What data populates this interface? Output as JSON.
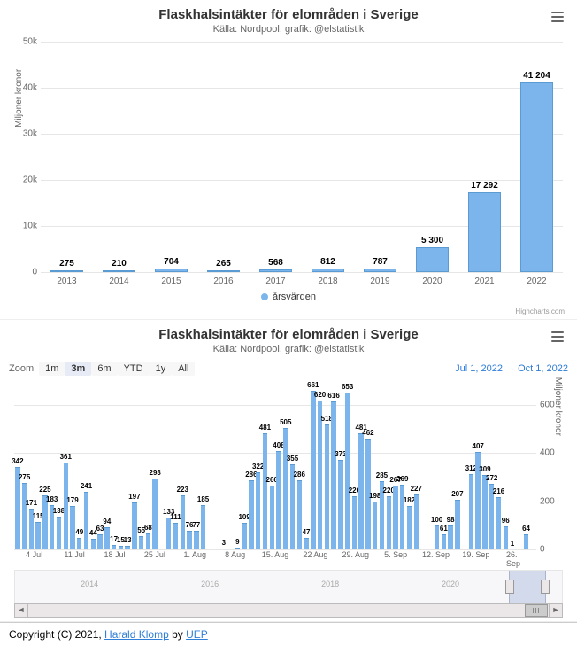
{
  "chart1": {
    "title": "Flaskhalsintäkter för elområden i Sverige",
    "subtitle": "Källa: Nordpool, grafik: @elstatistik",
    "ylabel": "Miljoner kronor",
    "ymax": 50000,
    "yticks": [
      0,
      10000,
      20000,
      30000,
      40000,
      50000
    ],
    "ytick_labels": [
      "0",
      "10k",
      "20k",
      "30k",
      "40k",
      "50k"
    ],
    "categories": [
      "2013",
      "2014",
      "2015",
      "2016",
      "2017",
      "2018",
      "2019",
      "2020",
      "2021",
      "2022"
    ],
    "values": [
      275,
      210,
      704,
      265,
      568,
      812,
      787,
      5300,
      17292,
      41204
    ],
    "labels": [
      "275",
      "210",
      "704",
      "265",
      "568",
      "812",
      "787",
      "5 300",
      "17 292",
      "41 204"
    ],
    "bar_color": "#7cb5ec",
    "legend": "årsvärden",
    "credits": "Highcharts.com"
  },
  "chart2": {
    "title": "Flaskhalsintäkter för elområden i Sverige",
    "subtitle": "Källa: Nordpool, grafik: @elstatistik",
    "ylabel": "Miljoner kronor",
    "zoom_label": "Zoom",
    "zoom_buttons": [
      "1m",
      "3m",
      "6m",
      "YTD",
      "1y",
      "All"
    ],
    "zoom_active": "3m",
    "range_from": "Jul 1, 2022",
    "range_to": "Oct 1, 2022",
    "ymax": 700,
    "yticks": [
      0,
      200,
      400,
      600
    ],
    "ytick_labels": [
      "0",
      "200",
      "400",
      "600"
    ],
    "values": [
      342,
      275,
      171,
      115,
      225,
      183,
      138,
      361,
      179,
      49,
      241,
      44,
      63,
      94,
      17,
      15,
      13,
      197,
      55,
      68,
      293,
      0,
      133,
      111,
      223,
      76,
      77,
      185,
      0,
      0,
      3,
      0,
      9,
      109,
      286,
      322,
      481,
      266,
      408,
      505,
      355,
      286,
      47,
      661,
      620,
      518,
      616,
      373,
      653,
      220,
      481,
      462,
      198,
      285,
      220,
      267,
      269,
      182,
      227,
      0,
      0,
      100,
      61,
      98,
      207,
      0,
      312,
      407,
      309,
      272,
      216,
      96,
      1,
      0,
      64,
      0
    ],
    "x_ticks": [
      "4 Jul",
      "11 Jul",
      "18 Jul",
      "25 Jul",
      "1. Aug",
      "8 Aug",
      "15. Aug",
      "22 Aug",
      "29. Aug",
      "5. Sep",
      "12. Sep",
      "19. Sep",
      "26. Sep"
    ],
    "nav_years": [
      "2014",
      "2016",
      "2018",
      "2020"
    ],
    "credits": "Highcharts.com"
  },
  "footer": {
    "prefix": "Copyright (C) 2021, ",
    "link1": "Harald Klomp",
    "mid": " by ",
    "link2": "UEP"
  }
}
